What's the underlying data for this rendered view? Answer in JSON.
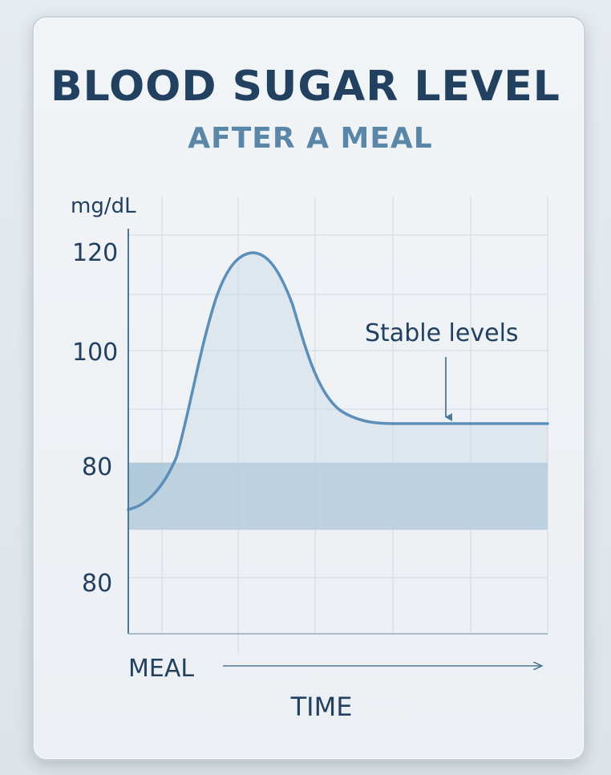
{
  "header": {
    "title": "BLOOD SUGAR LEVEL",
    "subtitle": "AFTER A MEAL"
  },
  "colors": {
    "line": "#5b8fb9",
    "band": "#9dbdd3",
    "text": "#22405f",
    "subtitle": "#5a86a8"
  },
  "chart_data": {
    "type": "area",
    "title": "BLOOD SUGAR LEVEL",
    "subtitle": "AFTER A MEAL",
    "ylabel": "mg/dL",
    "xlabel": "TIME",
    "y_tick_labels": [
      "120",
      "100",
      "80",
      "80"
    ],
    "x_tick_labels": [
      "MEAL"
    ],
    "grid": true,
    "annotation": "Stable levels",
    "series": [
      {
        "x": [
          0,
          0.05,
          0.13,
          0.22,
          0.3,
          0.4,
          0.55,
          0.7,
          1.0
        ],
        "values": [
          73,
          80,
          110,
          120,
          110,
          92,
          86,
          86,
          86
        ]
      }
    ],
    "normal_band": [
      70,
      80
    ]
  }
}
